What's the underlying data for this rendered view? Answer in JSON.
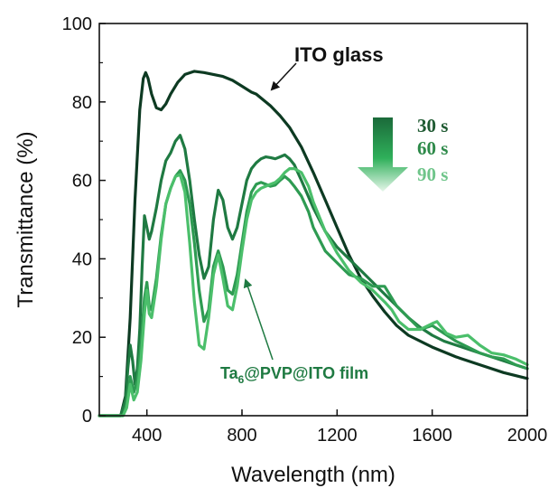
{
  "chart_data": {
    "type": "line",
    "xlabel": "Wavelength (nm)",
    "ylabel": "Transmittance (%)",
    "xlim": [
      200,
      2000
    ],
    "ylim": [
      0,
      100
    ],
    "xticks": [
      400,
      800,
      1200,
      1600,
      2000
    ],
    "yticks": [
      0,
      20,
      40,
      60,
      80,
      100
    ],
    "grid": false,
    "annotations": {
      "ito_label": "ITO glass",
      "film_label_prefix": "Ta",
      "film_label_subscript": "6",
      "film_label_suffix": "@PVP@ITO film"
    },
    "legend": {
      "placement": "top-right",
      "entries": [
        "30 s",
        "60 s",
        "90 s"
      ]
    },
    "series": [
      {
        "name": "ITO glass",
        "color": "#0d3a22",
        "x": [
          200,
          290,
          310,
          330,
          350,
          370,
          385,
          395,
          405,
          420,
          440,
          460,
          480,
          500,
          530,
          560,
          600,
          640,
          680,
          720,
          760,
          800,
          840,
          860,
          880,
          920,
          960,
          1000,
          1050,
          1100,
          1150,
          1200,
          1250,
          1300,
          1350,
          1400,
          1450,
          1500,
          1600,
          1700,
          1800,
          1900,
          2000
        ],
        "y": [
          0,
          0,
          5,
          25,
          55,
          78,
          86,
          87.5,
          86,
          82,
          78.5,
          78,
          79.5,
          82,
          85,
          87,
          87.8,
          87.5,
          87,
          86.5,
          85.5,
          84,
          82.5,
          82,
          81,
          79,
          76.5,
          73.5,
          68.5,
          62,
          55,
          48,
          41,
          35,
          30.5,
          26.5,
          23,
          20.5,
          17.5,
          15,
          13,
          11,
          9.5
        ]
      },
      {
        "name": "30 s",
        "color": "#1f7a42",
        "x": [
          200,
          290,
          310,
          320,
          330,
          340,
          350,
          360,
          370,
          380,
          390,
          400,
          410,
          420,
          440,
          460,
          480,
          500,
          520,
          540,
          560,
          580,
          600,
          620,
          640,
          660,
          680,
          700,
          720,
          740,
          760,
          780,
          800,
          820,
          840,
          860,
          880,
          900,
          920,
          940,
          960,
          980,
          1000,
          1020,
          1050,
          1100,
          1150,
          1200,
          1250,
          1300,
          1350,
          1400,
          1450,
          1500,
          1550,
          1600,
          1650,
          1700,
          1750,
          1800,
          1850,
          1900,
          1950,
          2000
        ],
        "y": [
          0,
          0,
          4,
          12,
          18,
          14,
          8,
          12,
          22,
          38,
          51,
          48,
          45,
          47,
          53,
          60,
          65,
          67,
          70,
          71.5,
          68,
          60,
          50,
          41,
          35,
          38,
          50,
          57.5,
          55,
          48,
          45,
          48,
          54,
          60,
          63,
          64.5,
          65.5,
          66,
          65.8,
          65.5,
          66,
          66.5,
          65.5,
          64,
          60,
          53,
          47,
          43,
          40,
          37,
          34,
          31,
          28,
          25,
          22.5,
          20.5,
          19,
          18,
          17,
          16,
          15,
          14,
          13,
          12
        ]
      },
      {
        "name": "60 s",
        "color": "#2e9b52",
        "x": [
          200,
          300,
          315,
          330,
          345,
          360,
          375,
          390,
          400,
          410,
          420,
          440,
          460,
          480,
          500,
          520,
          540,
          560,
          580,
          600,
          620,
          640,
          660,
          680,
          700,
          720,
          740,
          760,
          780,
          800,
          820,
          840,
          860,
          880,
          900,
          920,
          940,
          960,
          980,
          1000,
          1020,
          1050,
          1080,
          1100,
          1150,
          1200,
          1250,
          1300,
          1350,
          1400,
          1450,
          1500,
          1550,
          1600,
          1650,
          1700,
          1750,
          1800,
          1850,
          1900,
          1950,
          2000
        ],
        "y": [
          0,
          0,
          3,
          10,
          6,
          9,
          18,
          30,
          34,
          28,
          27,
          35,
          46,
          54,
          58,
          61,
          62.5,
          60,
          54,
          44,
          32,
          24,
          27,
          38,
          42,
          38,
          32,
          31,
          36,
          44,
          52,
          57,
          59,
          59.5,
          59,
          58.5,
          58.8,
          60,
          61,
          60,
          58.5,
          56,
          52,
          48,
          42,
          39,
          36,
          35,
          33,
          33,
          28,
          25,
          22,
          23,
          21,
          19,
          17.5,
          16,
          15,
          14.5,
          13,
          12
        ]
      },
      {
        "name": "90 s",
        "color": "#4bbf6b",
        "x": [
          200,
          300,
          315,
          330,
          345,
          360,
          375,
          390,
          400,
          410,
          420,
          440,
          460,
          480,
          500,
          520,
          540,
          560,
          580,
          600,
          620,
          640,
          660,
          680,
          700,
          720,
          740,
          760,
          780,
          800,
          820,
          840,
          860,
          880,
          900,
          920,
          940,
          960,
          980,
          1000,
          1020,
          1050,
          1080,
          1100,
          1150,
          1200,
          1250,
          1300,
          1350,
          1400,
          1430,
          1460,
          1500,
          1550,
          1600,
          1620,
          1660,
          1700,
          1750,
          1800,
          1850,
          1900,
          1950,
          2000
        ],
        "y": [
          0,
          0,
          2,
          8,
          4,
          6,
          14,
          26,
          32,
          26,
          25,
          33,
          45,
          54,
          58,
          61,
          61.5,
          57,
          44,
          29,
          18,
          17,
          25,
          36,
          41,
          35,
          28,
          27,
          33,
          42,
          50,
          55,
          57,
          58,
          58.5,
          59,
          59.5,
          60.5,
          62,
          63,
          63,
          62,
          58.5,
          54.5,
          47,
          41.5,
          37,
          34,
          32,
          29,
          27,
          24,
          22,
          22,
          23.5,
          24,
          21,
          20,
          20.5,
          18,
          16,
          15.5,
          14.5,
          13
        ]
      }
    ]
  }
}
